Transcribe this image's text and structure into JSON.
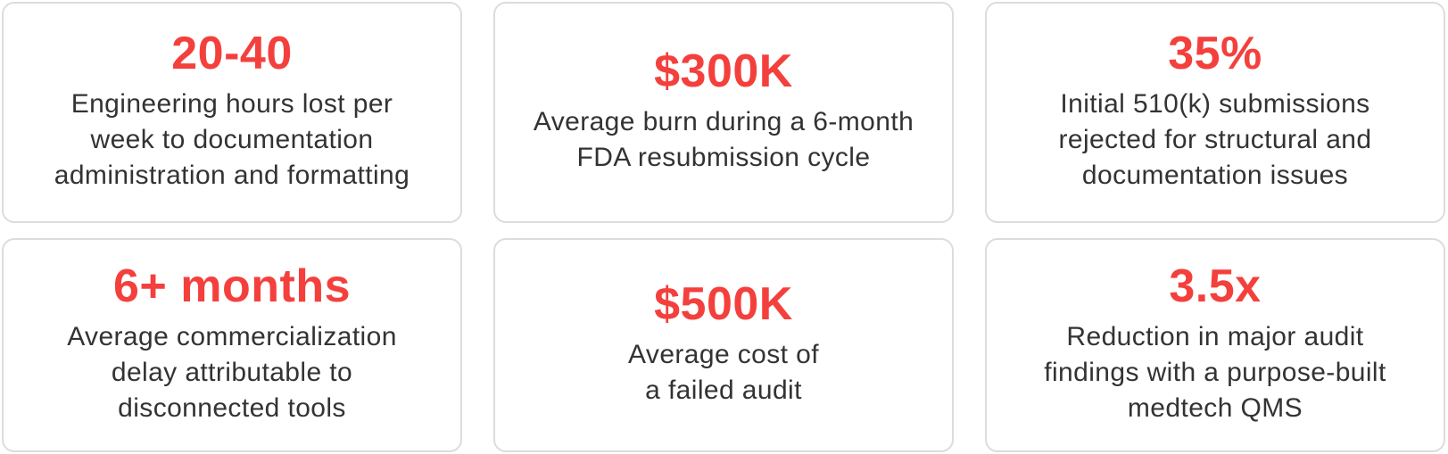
{
  "colors": {
    "accent": "#f4403d",
    "text": "#333333",
    "border": "#dcdcdc"
  },
  "stats": [
    {
      "value": "20-40",
      "lines": [
        "Engineering hours lost per",
        "week to documentation",
        "administration and formatting"
      ]
    },
    {
      "value": "$300K",
      "lines": [
        "Average burn during a 6-month",
        "FDA resubmission cycle"
      ]
    },
    {
      "value": "35%",
      "lines": [
        "Initial 510(k) submissions",
        "rejected for structural and",
        "documentation issues"
      ]
    },
    {
      "value": "6+ months",
      "lines": [
        "Average commercialization",
        "delay attributable to",
        "disconnected tools"
      ]
    },
    {
      "value": "$500K",
      "lines": [
        "Average cost of",
        "a failed audit"
      ]
    },
    {
      "value": "3.5x",
      "lines": [
        "Reduction in major audit",
        "findings with a purpose-built",
        "medtech QMS"
      ]
    }
  ]
}
